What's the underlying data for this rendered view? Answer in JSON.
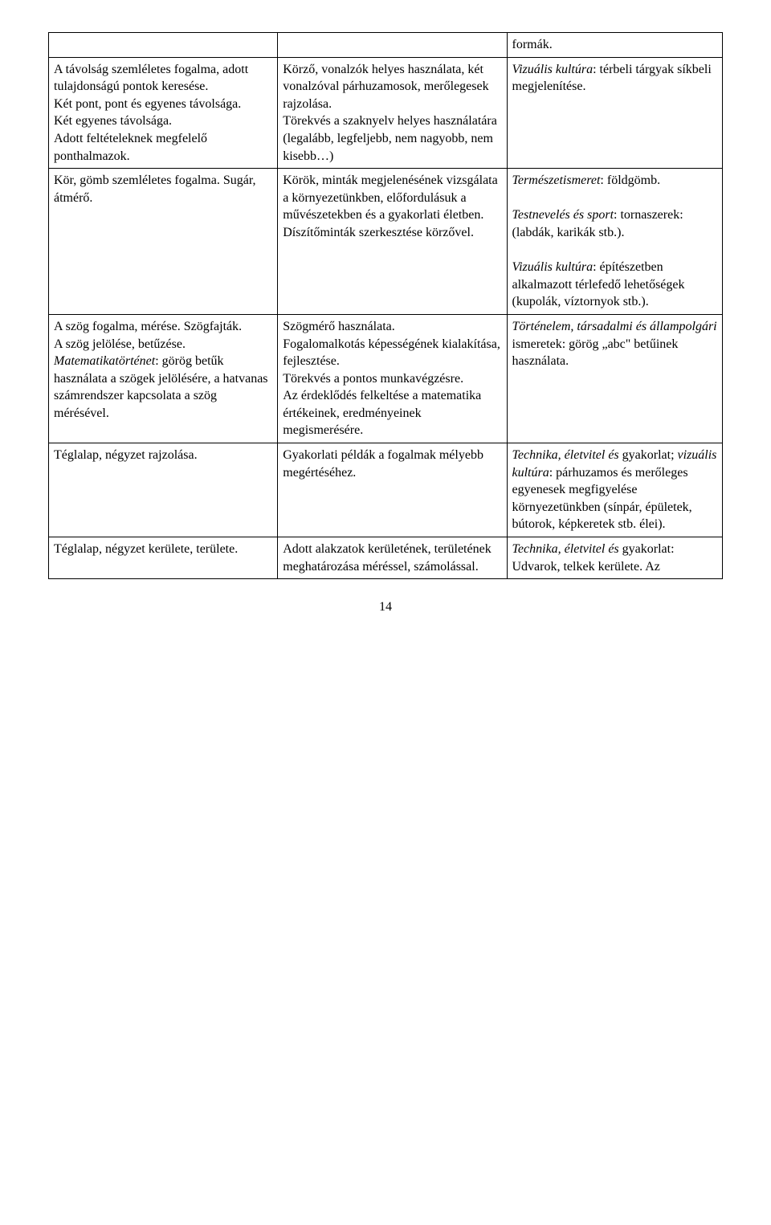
{
  "page_number": "14",
  "table": {
    "columns": [
      "c1",
      "c2",
      "c3"
    ],
    "rows": [
      {
        "c1": "",
        "c2": "",
        "c3": "formák."
      },
      {
        "c1": "A távolság szemléletes fogalma, adott tulajdonságú pontok keresése.\nKét pont, pont és egyenes távolsága.\nKét egyenes távolsága.\nAdott feltételeknek megfelelő ponthalmazok.",
        "c2": "Körző, vonalzók helyes használata, két vonalzóval párhuzamosok, merőlegesek rajzolása.\nTörekvés a szaknyelv helyes használatára (legalább, legfeljebb, nem nagyobb, nem kisebb…)",
        "c3_html": "<span class=\"italic\">Vizuális kultúra</span>: térbeli tárgyak síkbeli megjelenítése."
      },
      {
        "c1": "Kör, gömb szemléletes fogalma. Sugár, átmérő.",
        "c2": "Körök, minták megjelenésének vizsgálata a környezetünkben, előfordulásuk a művészetekben és a gyakorlati életben.\nDíszítőminták szerkesztése körzővel.",
        "c3_html": "<span class=\"italic\">Természetismeret</span>: földgömb.<br><br><span class=\"italic\">Testnevelés és sport</span>: tornaszerek: (labdák, karikák stb.).<br><br><span class=\"italic\">Vizuális kultúra</span>: építészetben alkalmazott térlefedő lehetőségek (kupolák, víztornyok stb.).",
        "c1_rowspan": 1
      },
      {
        "c1_html": "A szög fogalma, mérése. Szögfajták.<br>A szög jelölése, betűzése.<br><span class=\"italic\">Matematikatörténet</span>: görög betűk használata a szögek jelölésére, a hatvanas számrendszer kapcsolata a szög mérésével.",
        "c2": "Szögmérő használata.\nFogalomalkotás képességének kialakítása, fejlesztése.\nTörekvés a pontos munkavégzésre.\nAz érdeklődés felkeltése a matematika értékeinek, eredményeinek megismerésére.",
        "c3_html": "<span class=\"italic\">Történelem, társadalmi és állampolgári</span> ismeretek: görög „abc\" betűinek használata."
      },
      {
        "c1": "Téglalap, négyzet rajzolása.",
        "c2": "Gyakorlati példák a fogalmak mélyebb megértéséhez.",
        "c3_html": "<span class=\"italic\">Technika, életvitel és</span> gyakorlat; <span class=\"italic\">vizuális kultúra</span>: párhuzamos és merőleges egyenesek megfigyelése környezetünkben (sínpár, épületek, bútorok, képkeretek stb. élei)."
      },
      {
        "c1": "Téglalap, négyzet kerülete, területe.",
        "c2": "Adott alakzatok kerületének, területének meghatározása méréssel, számolással.",
        "c3_html": "<span class=\"italic\">Technika, életvitel és</span> gyakorlat: Udvarok, telkek kerülete. Az"
      }
    ]
  }
}
